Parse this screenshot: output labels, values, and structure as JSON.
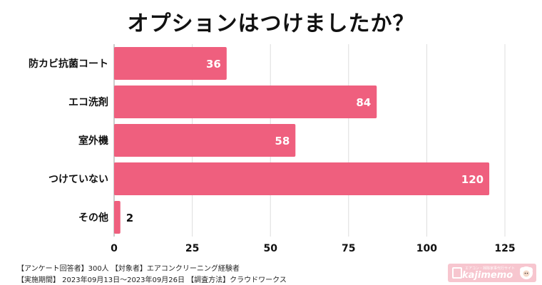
{
  "chart_data": {
    "type": "bar",
    "orientation": "horizontal",
    "title": "オプションはつけましたか？",
    "categories": [
      "防カビ抗菌コート",
      "エコ洗剤",
      "室外機",
      "つけていない",
      "その他"
    ],
    "values": [
      36,
      84,
      58,
      120,
      2
    ],
    "xlim": [
      0,
      125
    ],
    "xticks": [
      0,
      25,
      50,
      75,
      100,
      125
    ],
    "grid": true,
    "bar_color": "#ef5f7e"
  },
  "footer": {
    "line1": "【アンケート回答者】300人 【対象者】エアコンクリーニング経験者",
    "line2": "【実施期間】 2023年09月13日～2023年09月26日 【調査方法】クラウドワークス"
  },
  "logo": {
    "text": "kajimemo",
    "tagline": "エアコン・掃除家事代行サイト"
  }
}
